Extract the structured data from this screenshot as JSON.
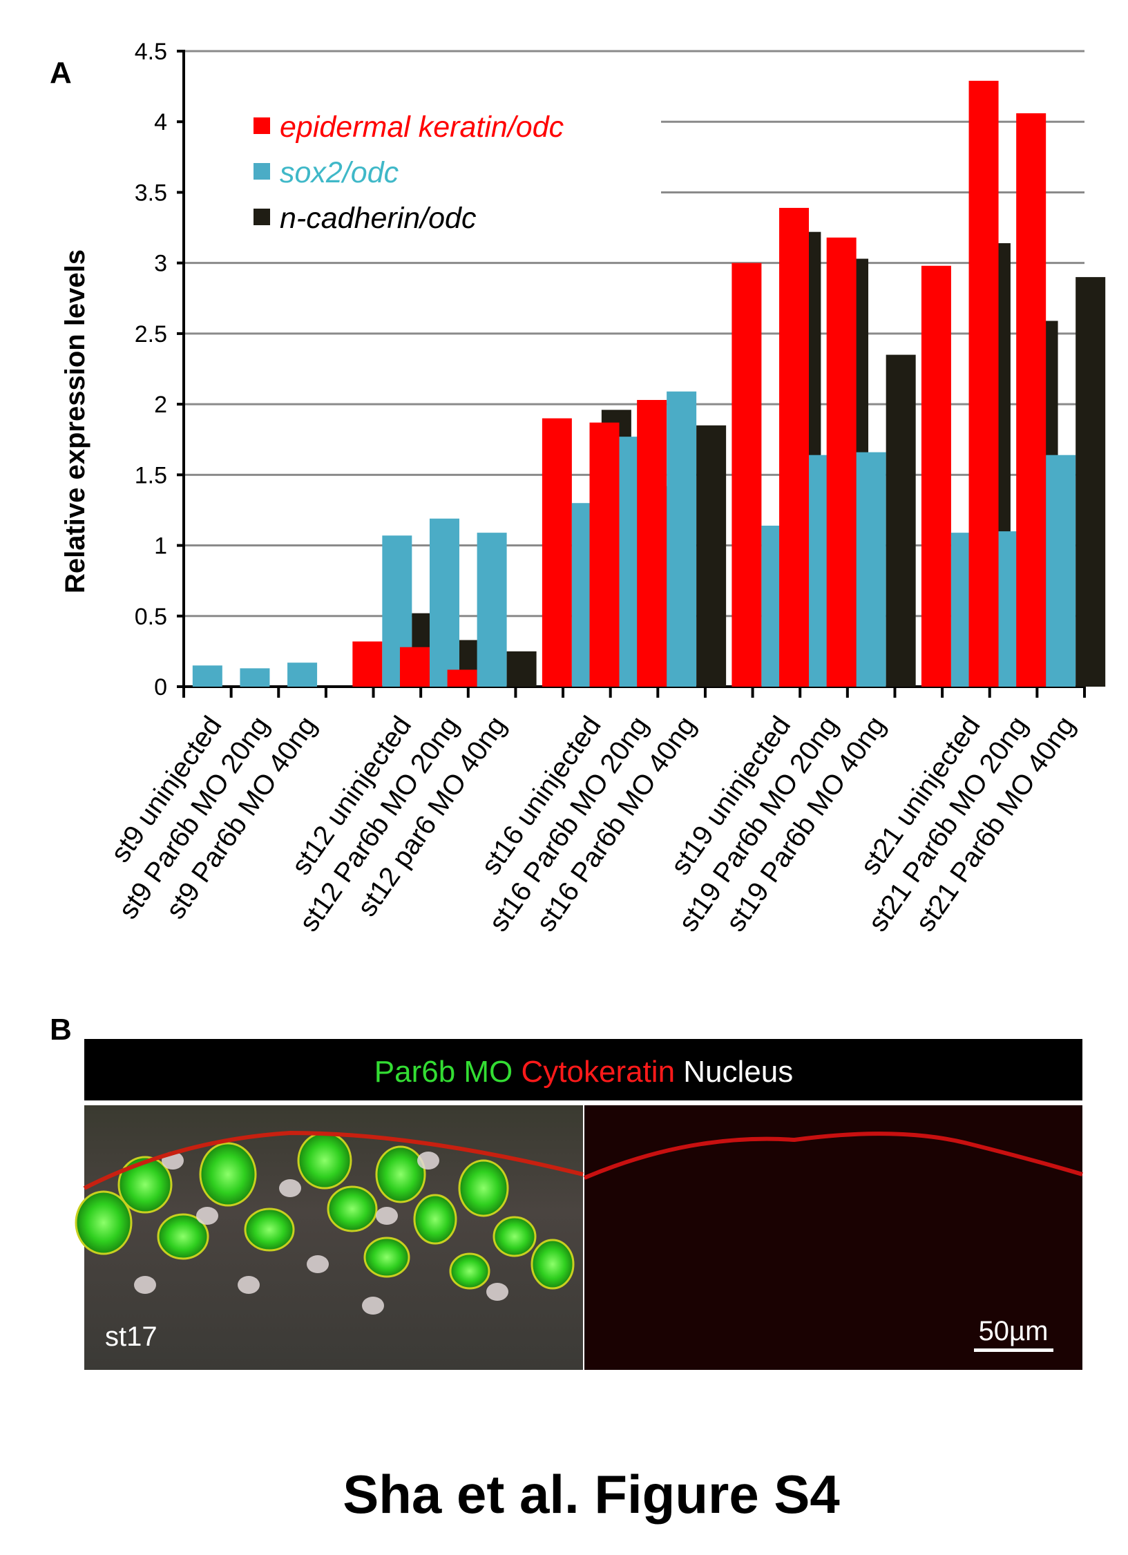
{
  "panel_labels": {
    "a": "A",
    "b": "B"
  },
  "chart_data": {
    "type": "bar",
    "title": "",
    "xlabel": "",
    "ylabel": "Relative expression levels",
    "ylim": [
      0,
      4.5
    ],
    "yticks": [
      "0",
      "0.5",
      "1",
      "1.5",
      "2",
      "2.5",
      "3",
      "3.5",
      "4",
      "4.5"
    ],
    "grid": true,
    "legend_placement": "top-left",
    "categories": [
      "st9 uninjected",
      "st9 Par6b MO 20ng",
      "st9 Par6b MO 40ng",
      "",
      "st12 uninjected",
      "st12 Par6b MO 20ng",
      "st12 par6 MO 40ng",
      "",
      "st16 uninjected",
      "st16 Par6b MO 20ng",
      "st16 Par6b MO 40ng",
      "",
      "st19 uninjected",
      "st19 Par6b MO 20ng",
      "st19 Par6b MO 40ng",
      "",
      "st21 uninjected",
      "st21 Par6b MO 20ng",
      "st21 Par6b MO 40ng"
    ],
    "series": [
      {
        "name": "epidermal keratin/odc",
        "color": "#ff0000",
        "values": [
          0,
          0,
          0,
          null,
          0.32,
          0.28,
          0.12,
          null,
          1.9,
          1.87,
          2.03,
          null,
          3.0,
          3.39,
          3.18,
          null,
          2.98,
          4.29,
          4.06
        ]
      },
      {
        "name": "sox2/odc",
        "color": "#4bacc6",
        "values": [
          0.15,
          0.13,
          0.17,
          null,
          1.07,
          1.19,
          1.09,
          null,
          1.3,
          1.77,
          2.09,
          null,
          1.14,
          1.64,
          1.66,
          null,
          1.09,
          1.1,
          1.64
        ]
      },
      {
        "name": "n-cadherin/odc",
        "color": "#1f1d14",
        "values": [
          0,
          0,
          0,
          null,
          0.52,
          0.33,
          0.25,
          null,
          1.96,
          1.42,
          1.85,
          null,
          3.22,
          3.03,
          2.35,
          null,
          3.14,
          2.59,
          2.9
        ]
      }
    ]
  },
  "micrograph": {
    "legend": [
      {
        "text": "Par6b MO",
        "color": "#33dd33"
      },
      {
        "text": "Cytokeratin",
        "color": "#ff1a1a"
      },
      {
        "text": "Nucleus",
        "color": "#ffffff"
      }
    ],
    "stage_label": "st17",
    "scale_bar_label": "50µm"
  },
  "figure_caption": "Sha et al. Figure S4"
}
